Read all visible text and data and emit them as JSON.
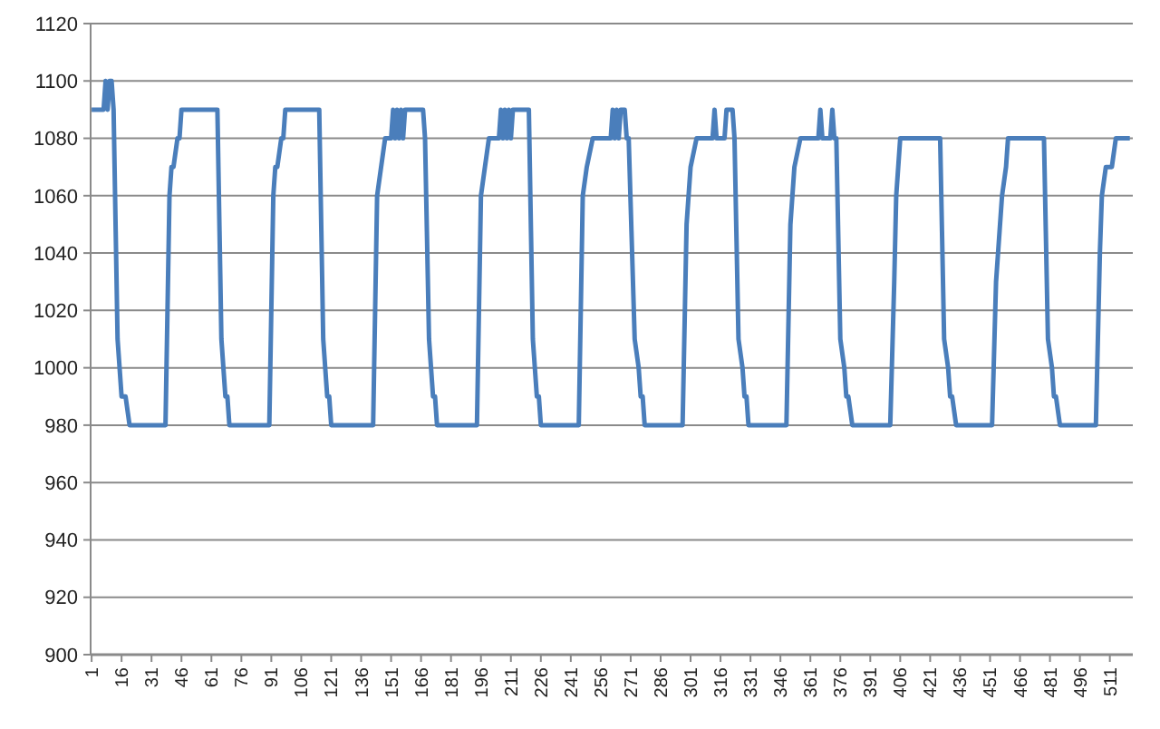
{
  "chart_data": {
    "type": "line",
    "x": [
      1,
      7,
      8,
      9,
      10,
      11,
      12,
      14,
      15,
      16,
      18,
      20,
      38,
      40,
      41,
      42,
      44,
      45,
      46,
      64,
      66,
      67,
      68,
      69,
      70,
      90,
      92,
      93,
      94,
      96,
      97,
      98,
      115,
      117,
      118,
      119,
      120,
      121,
      142,
      144,
      146,
      148,
      151,
      152,
      153,
      154,
      155,
      156,
      157,
      158,
      167,
      168,
      170,
      171,
      172,
      173,
      174,
      194,
      196,
      198,
      200,
      205,
      206,
      207,
      208,
      209,
      210,
      211,
      212,
      220,
      222,
      223,
      224,
      225,
      226,
      245,
      247,
      249,
      252,
      261,
      262,
      263,
      264,
      265,
      266,
      268,
      269,
      270,
      273,
      275,
      276,
      277,
      278,
      297,
      299,
      301,
      304,
      312,
      313,
      314,
      318,
      319,
      322,
      323,
      325,
      327,
      328,
      329,
      330,
      349,
      351,
      353,
      356,
      365,
      366,
      367,
      371,
      372,
      373,
      374,
      376,
      378,
      379,
      380,
      382,
      401,
      403,
      404,
      406,
      426,
      428,
      430,
      431,
      432,
      434,
      452,
      454,
      455,
      457,
      459,
      460,
      478,
      480,
      482,
      483,
      484,
      486,
      504,
      506,
      507,
      509,
      512,
      514,
      521
    ],
    "series": [
      {
        "color": "#4a7ebb",
        "values": [
          1090,
          1090,
          1100,
          1090,
          1100,
          1100,
          1090,
          1010,
          1000,
          990,
          990,
          980,
          980,
          1060,
          1070,
          1070,
          1080,
          1080,
          1090,
          1090,
          1010,
          1000,
          990,
          990,
          980,
          980,
          1060,
          1070,
          1070,
          1080,
          1080,
          1090,
          1090,
          1010,
          1000,
          990,
          990,
          980,
          980,
          1060,
          1070,
          1080,
          1080,
          1090,
          1080,
          1090,
          1080,
          1090,
          1080,
          1090,
          1090,
          1080,
          1010,
          1000,
          990,
          990,
          980,
          980,
          1060,
          1070,
          1080,
          1080,
          1090,
          1080,
          1090,
          1080,
          1090,
          1080,
          1090,
          1090,
          1010,
          1000,
          990,
          990,
          980,
          980,
          1060,
          1070,
          1080,
          1080,
          1090,
          1080,
          1090,
          1080,
          1090,
          1090,
          1080,
          1080,
          1010,
          1000,
          990,
          990,
          980,
          980,
          1050,
          1070,
          1080,
          1080,
          1090,
          1080,
          1080,
          1090,
          1090,
          1080,
          1010,
          1000,
          990,
          990,
          980,
          980,
          1050,
          1070,
          1080,
          1080,
          1090,
          1080,
          1080,
          1090,
          1080,
          1080,
          1010,
          1000,
          990,
          990,
          980,
          980,
          1030,
          1060,
          1080,
          1080,
          1010,
          1000,
          990,
          990,
          980,
          980,
          1030,
          1040,
          1060,
          1070,
          1080,
          1080,
          1010,
          1000,
          990,
          990,
          980,
          980,
          1040,
          1060,
          1070,
          1070,
          1080,
          1080
        ]
      }
    ],
    "xlim": [
      0.5,
      522.5
    ],
    "xticks": [
      1,
      16,
      31,
      46,
      61,
      76,
      91,
      106,
      121,
      136,
      151,
      166,
      181,
      196,
      211,
      226,
      241,
      256,
      271,
      286,
      301,
      316,
      331,
      346,
      361,
      376,
      391,
      406,
      421,
      436,
      451,
      466,
      481,
      496,
      511
    ],
    "ylim": [
      900,
      1120
    ],
    "yticks": [
      900,
      920,
      940,
      960,
      980,
      1000,
      1020,
      1040,
      1060,
      1080,
      1100,
      1120
    ],
    "grid": "y",
    "marker": "none",
    "line_style": "solid"
  }
}
